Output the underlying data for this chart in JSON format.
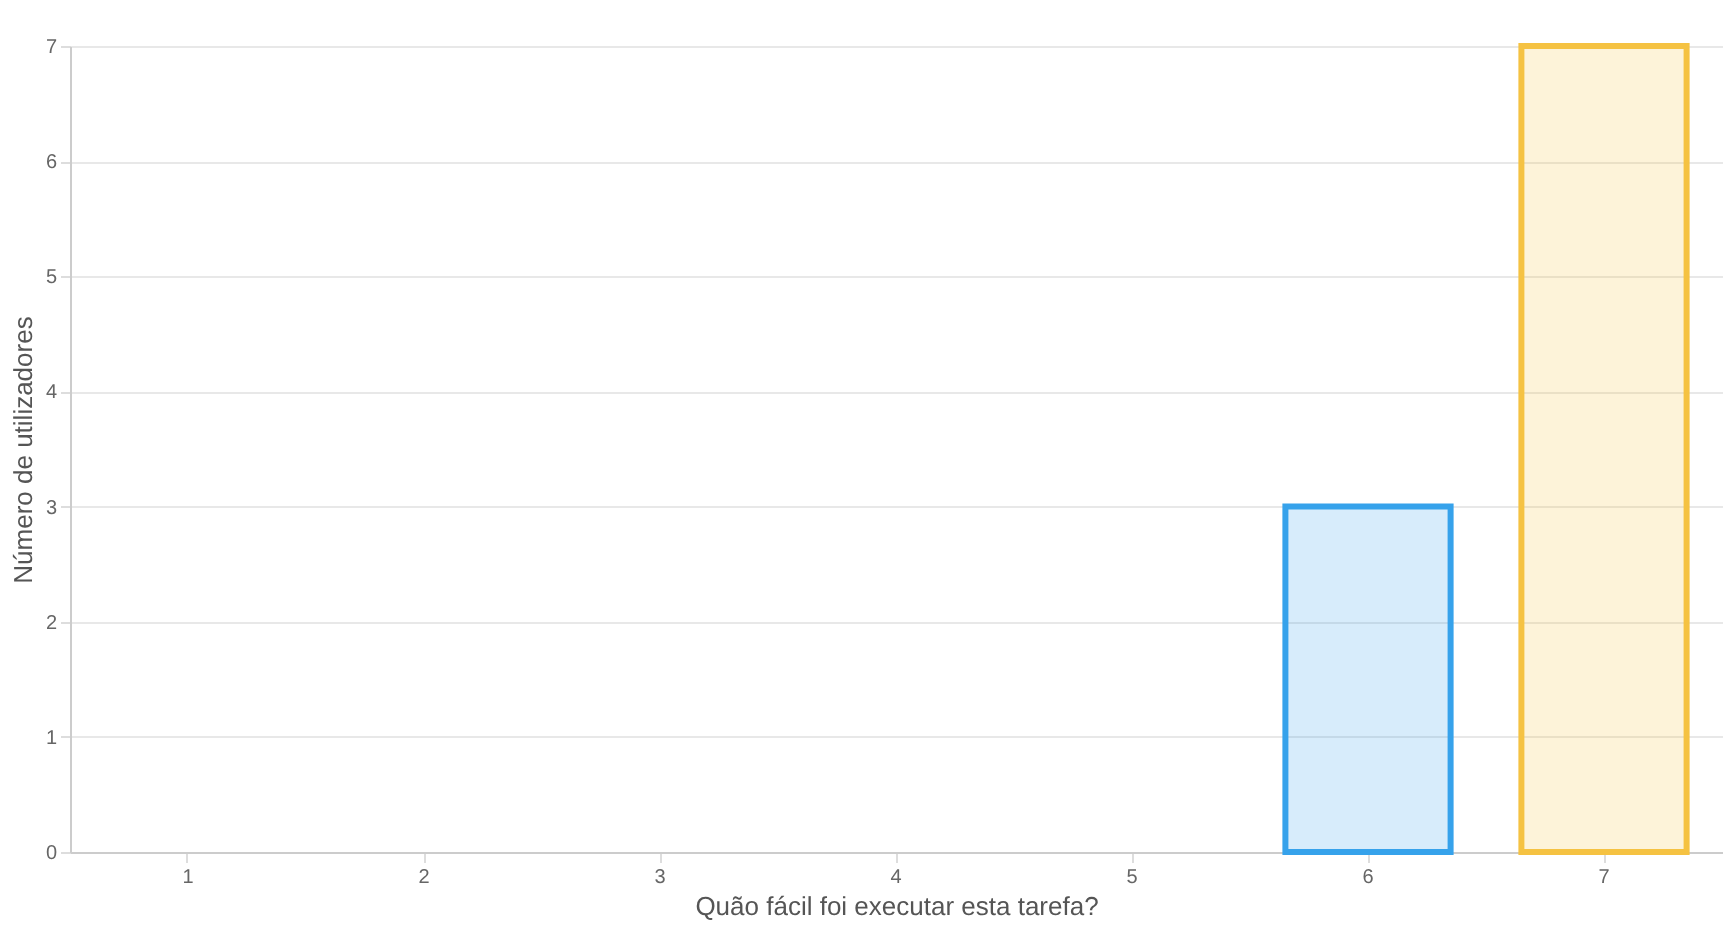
{
  "chart_data": {
    "type": "bar",
    "xlabel": "Quão fácil foi executar esta tarefa?",
    "ylabel": "Número de utilizadores",
    "categories": [
      "1",
      "2",
      "3",
      "4",
      "5",
      "6",
      "7"
    ],
    "values": [
      0,
      0,
      0,
      0,
      0,
      3,
      7
    ],
    "colors": [
      "#ff6384",
      "#ff9f40",
      "#4bc0c0",
      "#9966ff",
      "#c9cbcf",
      "#36a2eb",
      "#f5c242"
    ],
    "ylim": [
      0,
      7
    ],
    "yticks": [
      0,
      1,
      2,
      3,
      4,
      5,
      6,
      7
    ],
    "grid": "y"
  }
}
